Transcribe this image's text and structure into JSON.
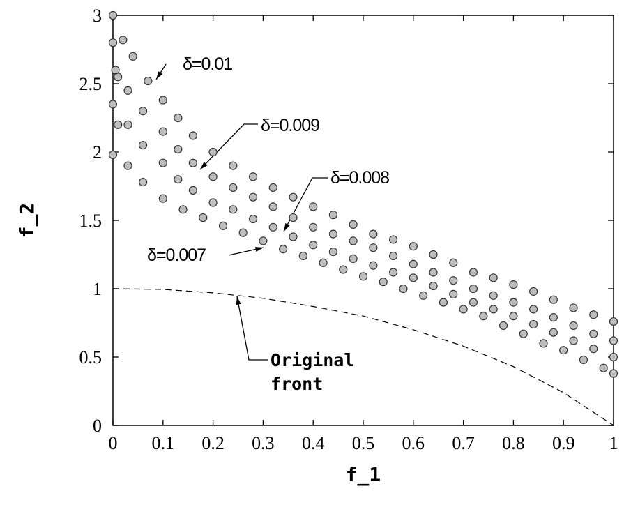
{
  "chart_data": {
    "type": "scatter",
    "xlabel": "f_1",
    "ylabel": "f_2",
    "xlim": [
      0,
      1
    ],
    "ylim": [
      0,
      3
    ],
    "xticks": [
      0,
      0.1,
      0.2,
      0.3,
      0.4,
      0.5,
      0.6,
      0.7,
      0.8,
      0.9,
      1
    ],
    "yticks": [
      0,
      0.5,
      1,
      1.5,
      2,
      2.5,
      3
    ],
    "series": [
      {
        "name": "δ=0.01",
        "color": "#bdbdbd",
        "x": [
          0,
          0.02,
          0.04,
          0.07,
          0.1,
          0.13,
          0.16,
          0.2,
          0.24,
          0.28,
          0.32,
          0.36,
          0.4,
          0.44,
          0.48,
          0.52,
          0.56,
          0.6,
          0.64,
          0.68,
          0.72,
          0.76,
          0.8,
          0.84,
          0.88,
          0.92,
          0.96,
          1.0
        ],
        "values": [
          3.0,
          2.82,
          2.7,
          2.52,
          2.38,
          2.25,
          2.12,
          2.0,
          1.9,
          1.82,
          1.74,
          1.67,
          1.6,
          1.54,
          1.47,
          1.4,
          1.36,
          1.31,
          1.25,
          1.19,
          1.12,
          1.08,
          1.03,
          0.98,
          0.92,
          0.86,
          0.81,
          0.76
        ]
      },
      {
        "name": "δ=0.009",
        "color": "#bdbdbd",
        "x": [
          0,
          0.01,
          0.03,
          0.06,
          0.1,
          0.13,
          0.16,
          0.2,
          0.24,
          0.28,
          0.32,
          0.36,
          0.4,
          0.44,
          0.48,
          0.52,
          0.56,
          0.6,
          0.64,
          0.68,
          0.72,
          0.76,
          0.8,
          0.84,
          0.88,
          0.92,
          0.96,
          1.0
        ],
        "values": [
          2.8,
          2.55,
          2.45,
          2.3,
          2.15,
          2.02,
          1.92,
          1.82,
          1.74,
          1.67,
          1.6,
          1.52,
          1.45,
          1.4,
          1.35,
          1.3,
          1.24,
          1.18,
          1.12,
          1.06,
          1.0,
          0.95,
          0.9,
          0.85,
          0.79,
          0.73,
          0.67,
          0.62
        ]
      },
      {
        "name": "δ=0.008",
        "color": "#bdbdbd",
        "x": [
          0,
          0.005,
          0.03,
          0.06,
          0.1,
          0.13,
          0.16,
          0.2,
          0.24,
          0.28,
          0.32,
          0.36,
          0.4,
          0.44,
          0.48,
          0.52,
          0.56,
          0.6,
          0.64,
          0.68,
          0.72,
          0.76,
          0.8,
          0.84,
          0.88,
          0.92,
          0.96,
          1.0
        ],
        "values": [
          2.35,
          2.6,
          2.2,
          2.05,
          1.92,
          1.8,
          1.72,
          1.63,
          1.58,
          1.51,
          1.45,
          1.38,
          1.32,
          1.27,
          1.22,
          1.17,
          1.12,
          1.08,
          1.02,
          0.96,
          0.9,
          0.85,
          0.8,
          0.74,
          0.68,
          0.62,
          0.56,
          0.5
        ]
      },
      {
        "name": "δ=0.007",
        "color": "#bdbdbd",
        "x": [
          0,
          0.01,
          0.03,
          0.06,
          0.1,
          0.14,
          0.18,
          0.22,
          0.26,
          0.3,
          0.34,
          0.38,
          0.42,
          0.46,
          0.5,
          0.54,
          0.58,
          0.62,
          0.66,
          0.7,
          0.74,
          0.78,
          0.82,
          0.86,
          0.9,
          0.94,
          0.98,
          1.0
        ],
        "values": [
          1.98,
          2.2,
          1.9,
          1.78,
          1.66,
          1.58,
          1.52,
          1.46,
          1.41,
          1.35,
          1.29,
          1.24,
          1.19,
          1.14,
          1.09,
          1.05,
          1.0,
          0.95,
          0.9,
          0.85,
          0.8,
          0.73,
          0.67,
          0.6,
          0.55,
          0.48,
          0.42,
          0.38
        ]
      },
      {
        "name": "Original front",
        "type": "line",
        "color": "#000000",
        "style": "dashed",
        "x": [
          0,
          0.1,
          0.2,
          0.3,
          0.4,
          0.5,
          0.6,
          0.7,
          0.8,
          0.9,
          1.0
        ],
        "values": [
          1.0,
          0.995,
          0.97,
          0.93,
          0.87,
          0.8,
          0.7,
          0.58,
          0.43,
          0.24,
          0.0
        ]
      }
    ]
  }
}
